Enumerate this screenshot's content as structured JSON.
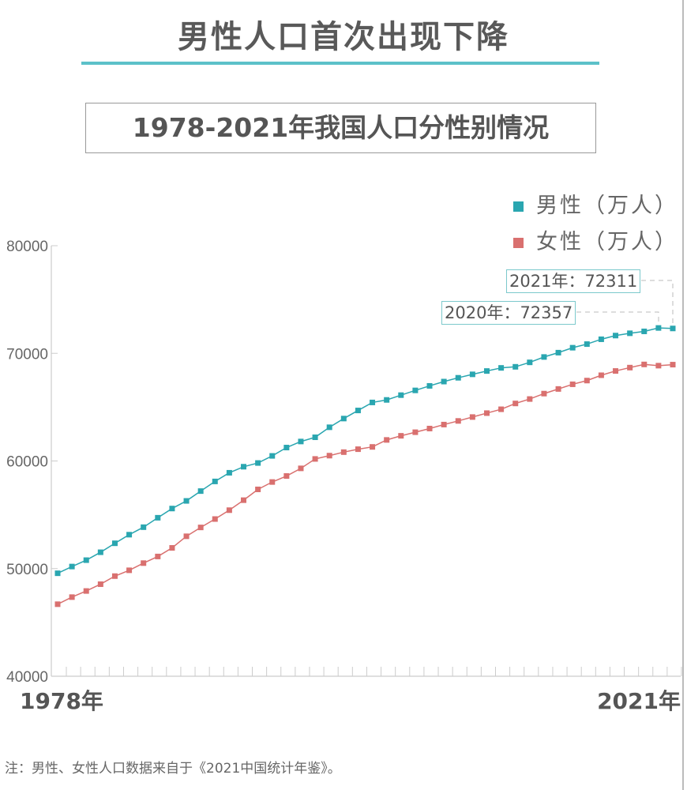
{
  "title": "男性人口首次出现下降",
  "subtitle": "1978-2021年我国人口分性别情况",
  "note": "注：男性、女性人口数据来自于《2021中国统计年鉴》。",
  "chart_data": {
    "type": "line",
    "title": "1978-2021年我国人口分性别情况",
    "x": [
      1978,
      1979,
      1980,
      1981,
      1982,
      1983,
      1984,
      1985,
      1986,
      1987,
      1988,
      1989,
      1990,
      1991,
      1992,
      1993,
      1994,
      1995,
      1996,
      1997,
      1998,
      1999,
      2000,
      2001,
      2002,
      2003,
      2004,
      2005,
      2006,
      2007,
      2008,
      2009,
      2010,
      2011,
      2012,
      2013,
      2014,
      2015,
      2016,
      2017,
      2018,
      2019,
      2020,
      2021
    ],
    "x_tick_labels": [
      "1978年",
      "2021年"
    ],
    "ylim": [
      40000,
      80000
    ],
    "y_ticks": [
      40000,
      50000,
      60000,
      70000,
      80000
    ],
    "y_tick_labels": [
      "40000",
      "50000",
      "60000",
      "70000",
      "80000"
    ],
    "legend_position": "top-right",
    "series": [
      {
        "name": "男性（万人）",
        "color": "#2aa6b0",
        "values": [
          49567,
          50192,
          50785,
          51519,
          52352,
          53152,
          53848,
          54725,
          55581,
          56290,
          57201,
          58099,
          58904,
          59466,
          59811,
          60472,
          61246,
          61808,
          62200,
          63131,
          63940,
          64692,
          65437,
          65672,
          66115,
          66556,
          66976,
          67375,
          67728,
          68048,
          68357,
          68647,
          68748,
          69161,
          69660,
          70063,
          70522,
          70857,
          71307,
          71650,
          71864,
          72039,
          72357,
          72311
        ]
      },
      {
        "name": "女性（万人）",
        "color": "#d9706f",
        "values": [
          46692,
          47350,
          47920,
          48553,
          49302,
          49843,
          50509,
          51126,
          51926,
          53003,
          53825,
          54605,
          55429,
          56357,
          57360,
          58045,
          58604,
          59313,
          60189,
          60495,
          60821,
          61094,
          61306,
          61955,
          62338,
          62671,
          63012,
          63381,
          63720,
          64081,
          64445,
          64803,
          65343,
          65755,
          66258,
          66689,
          67124,
          67469,
          67964,
          68361,
          68674,
          68969,
          68855,
          68949
        ]
      }
    ],
    "annotations": [
      {
        "label": "2021年：72311",
        "year": 2021,
        "value": 72311
      },
      {
        "label": "2020年：72357",
        "year": 2020,
        "value": 72357
      }
    ]
  }
}
